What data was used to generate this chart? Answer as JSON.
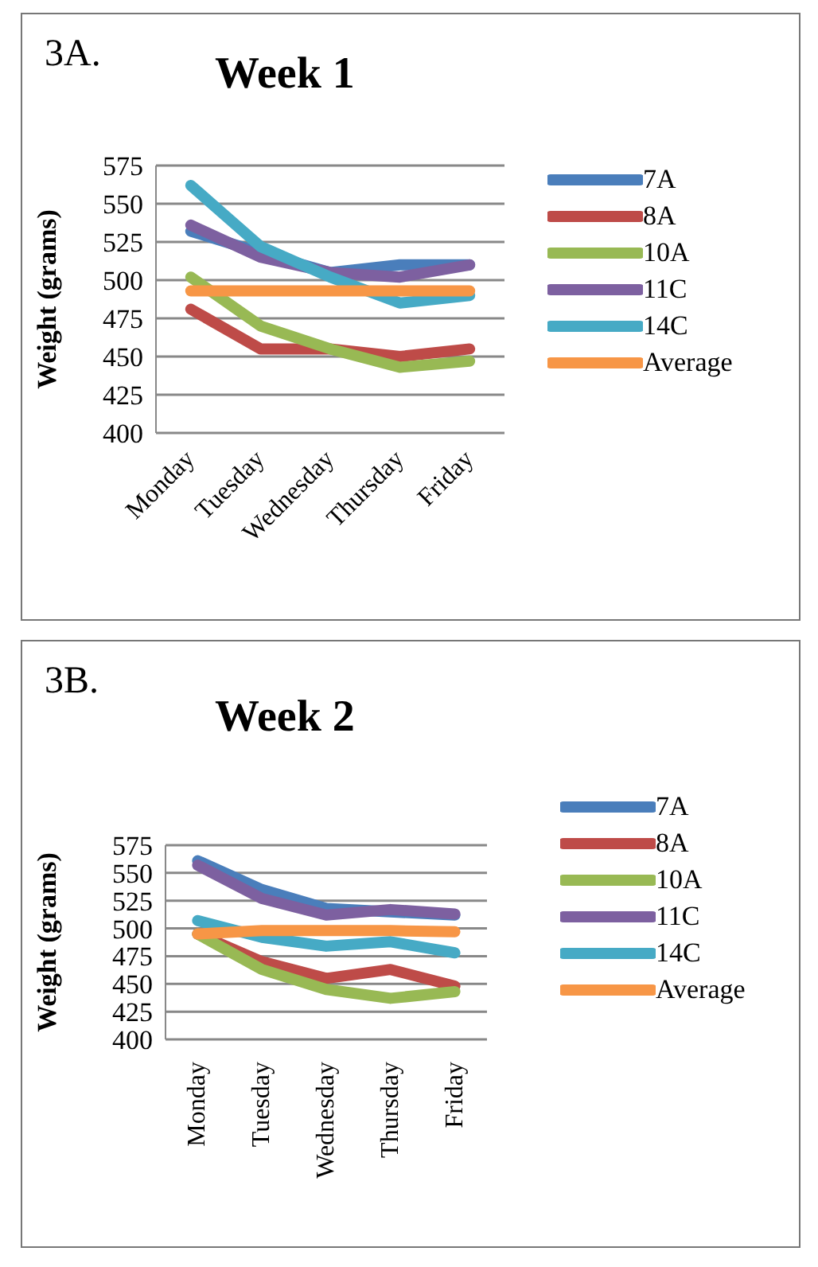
{
  "chart_data": [
    {
      "type": "line",
      "title": "Week 1",
      "ylabel": "Weight (grams)",
      "annotations": [
        "3A."
      ],
      "categories": [
        "Monday",
        "Tuesday",
        "Wednesday",
        "Thursday",
        "Friday"
      ],
      "series": [
        {
          "name": "7A",
          "color": "#4a7ebb",
          "values": [
            532,
            518,
            505,
            510,
            510
          ]
        },
        {
          "name": "8A",
          "color": "#be4b48",
          "values": [
            481,
            455,
            455,
            450,
            455
          ]
        },
        {
          "name": "10A",
          "color": "#98b954",
          "values": [
            502,
            470,
            455,
            443,
            447
          ]
        },
        {
          "name": "11C",
          "color": "#7d60a0",
          "values": [
            536,
            515,
            505,
            502,
            510
          ]
        },
        {
          "name": "14C",
          "color": "#46aac5",
          "values": [
            562,
            522,
            502,
            485,
            490
          ]
        },
        {
          "name": "Average",
          "color": "#f79646",
          "values": [
            493,
            493,
            493,
            493,
            493
          ]
        }
      ],
      "ylim": [
        400,
        575
      ],
      "yticks": [
        400,
        425,
        450,
        475,
        500,
        525,
        550,
        575
      ],
      "grid": "y",
      "legend": "right",
      "marker": "none"
    },
    {
      "type": "line",
      "title": "Week 2",
      "ylabel": "Weight (grams)",
      "annotations": [
        "3B."
      ],
      "categories": [
        "Monday",
        "Tuesday",
        "Wednesday",
        "Thursday",
        "Friday"
      ],
      "series": [
        {
          "name": "7A",
          "color": "#4a7ebb",
          "values": [
            561,
            535,
            518,
            515,
            512
          ]
        },
        {
          "name": "8A",
          "color": "#be4b48",
          "values": [
            495,
            470,
            455,
            463,
            448
          ]
        },
        {
          "name": "10A",
          "color": "#98b954",
          "values": [
            495,
            463,
            445,
            437,
            443
          ]
        },
        {
          "name": "11C",
          "color": "#7d60a0",
          "values": [
            557,
            527,
            512,
            517,
            513
          ]
        },
        {
          "name": "14C",
          "color": "#46aac5",
          "values": [
            507,
            492,
            484,
            488,
            478
          ]
        },
        {
          "name": "Average",
          "color": "#f79646",
          "values": [
            495,
            498,
            498,
            498,
            497
          ]
        }
      ],
      "ylim": [
        400,
        575
      ],
      "yticks": [
        400,
        425,
        450,
        475,
        500,
        525,
        550,
        575
      ],
      "grid": "y",
      "legend": "right",
      "marker": "none"
    }
  ]
}
